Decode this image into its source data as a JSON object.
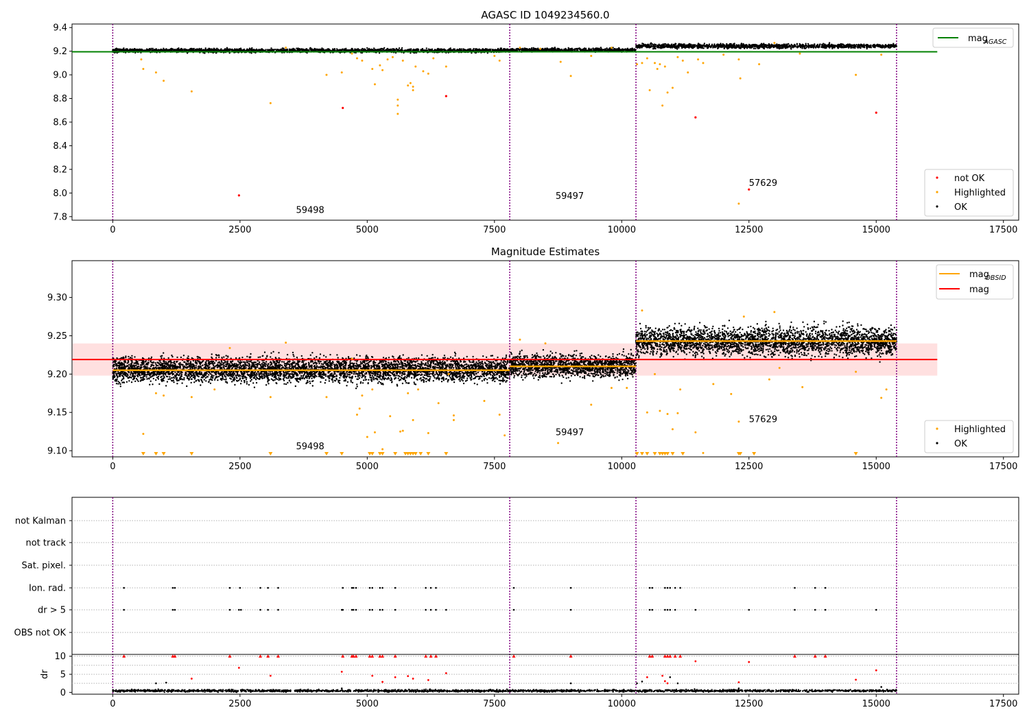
{
  "figure_title": "AGASC ID 1049234560.0",
  "colors": {
    "ok": "#000000",
    "highlighted": "#ffa500",
    "not_ok": "#ff0000",
    "agasc_line": "#008000",
    "mag_line": "#ff0000",
    "mag_obsid_line": "#ffa500",
    "boundary": "#800080",
    "band": "#ffdada"
  },
  "chart_data": [
    {
      "type": "scatter",
      "title": "AGASC ID 1049234560.0",
      "xlabel": "",
      "ylabel": "",
      "xlim": [
        -800,
        17800
      ],
      "ylim": [
        7.77,
        9.43
      ],
      "xticks": [
        0,
        2500,
        5000,
        7500,
        10000,
        12500,
        15000,
        17500
      ],
      "xtick_labels": [
        "0",
        "2500",
        "5000",
        "7500",
        "10000",
        "12500",
        "15000",
        "17500"
      ],
      "yticks": [
        7.8,
        8.0,
        8.2,
        8.4,
        8.6,
        8.8,
        9.0,
        9.2,
        9.4
      ],
      "ytick_labels": [
        "7.8",
        "8.0",
        "8.2",
        "8.4",
        "8.6",
        "8.8",
        "9.0",
        "9.2",
        "9.4"
      ],
      "legend_top": {
        "position": "top-right",
        "entries": [
          {
            "label": "mag",
            "subscript": "AGASC",
            "color": "#008000",
            "kind": "line"
          }
        ]
      },
      "legend_bottom": {
        "position": "bottom-right",
        "entries": [
          {
            "label": "not OK",
            "color": "#ff0000",
            "kind": "dot"
          },
          {
            "label": "Highlighted",
            "color": "#ffa500",
            "kind": "dot"
          },
          {
            "label": "OK",
            "color": "#000000",
            "kind": "dot"
          }
        ]
      },
      "obsid_boundaries": [
        0,
        7800,
        10280,
        15400
      ],
      "obsid_annotations": [
        {
          "label": "59498",
          "x": 3600,
          "y": 7.83
        },
        {
          "label": "59497",
          "x": 8700,
          "y": 7.95
        },
        {
          "label": "57629",
          "x": 12500,
          "y": 8.06
        }
      ],
      "agasc_mag": 9.195,
      "agasc_mag_xrange": [
        -800,
        16200
      ],
      "ok_bands": [
        {
          "x0": 0,
          "x1": 7800,
          "center": 9.205,
          "spread": 0.018
        },
        {
          "x0": 7800,
          "x1": 10280,
          "center": 9.21,
          "spread": 0.016
        },
        {
          "x0": 10280,
          "x1": 15400,
          "center": 9.243,
          "spread": 0.02
        }
      ],
      "highlighted_points": [
        [
          600,
          9.05
        ],
        [
          850,
          9.02
        ],
        [
          560,
          9.13
        ],
        [
          1000,
          8.95
        ],
        [
          1550,
          8.86
        ],
        [
          3100,
          8.76
        ],
        [
          3400,
          9.23
        ],
        [
          4200,
          9.0
        ],
        [
          4500,
          9.02
        ],
        [
          4800,
          9.14
        ],
        [
          4700,
          9.18
        ],
        [
          4900,
          9.12
        ],
        [
          5100,
          9.05
        ],
        [
          5150,
          8.92
        ],
        [
          5300,
          9.04
        ],
        [
          5250,
          9.08
        ],
        [
          5400,
          9.13
        ],
        [
          5500,
          9.15
        ],
        [
          5600,
          8.79
        ],
        [
          5600,
          8.74
        ],
        [
          5600,
          8.67
        ],
        [
          5700,
          9.12
        ],
        [
          5800,
          8.91
        ],
        [
          5850,
          8.93
        ],
        [
          5900,
          8.9
        ],
        [
          5900,
          8.87
        ],
        [
          5950,
          9.07
        ],
        [
          6100,
          9.03
        ],
        [
          6200,
          9.01
        ],
        [
          6300,
          9.14
        ],
        [
          6550,
          9.07
        ],
        [
          7500,
          9.16
        ],
        [
          7600,
          9.12
        ],
        [
          8000,
          9.23
        ],
        [
          8400,
          9.22
        ],
        [
          8800,
          9.11
        ],
        [
          9000,
          8.99
        ],
        [
          9400,
          9.16
        ],
        [
          9800,
          9.23
        ],
        [
          10300,
          9.09
        ],
        [
          10400,
          9.1
        ],
        [
          10500,
          9.14
        ],
        [
          10550,
          8.87
        ],
        [
          10650,
          9.1
        ],
        [
          10700,
          9.05
        ],
        [
          10750,
          9.09
        ],
        [
          10800,
          8.74
        ],
        [
          10850,
          9.07
        ],
        [
          10900,
          8.85
        ],
        [
          11000,
          8.89
        ],
        [
          11100,
          9.15
        ],
        [
          11200,
          9.12
        ],
        [
          11300,
          9.02
        ],
        [
          11500,
          9.13
        ],
        [
          11600,
          9.1
        ],
        [
          12000,
          9.17
        ],
        [
          12300,
          9.13
        ],
        [
          12330,
          8.97
        ],
        [
          12300,
          7.91
        ],
        [
          12700,
          9.09
        ],
        [
          13000,
          9.27
        ],
        [
          13500,
          9.18
        ],
        [
          14600,
          9.0
        ],
        [
          15100,
          9.17
        ]
      ],
      "not_ok_points": [
        [
          2480,
          7.98
        ],
        [
          4520,
          8.72
        ],
        [
          6550,
          8.82
        ],
        [
          11450,
          8.64
        ],
        [
          12500,
          8.03
        ],
        [
          15000,
          8.68
        ]
      ]
    },
    {
      "type": "scatter",
      "title": "Magnitude Estimates",
      "xlabel": "",
      "ylabel": "",
      "xlim": [
        -800,
        17800
      ],
      "ylim": [
        9.092,
        9.348
      ],
      "xticks": [
        0,
        2500,
        5000,
        7500,
        10000,
        12500,
        15000,
        17500
      ],
      "xtick_labels": [
        "0",
        "2500",
        "5000",
        "7500",
        "10000",
        "12500",
        "15000",
        "17500"
      ],
      "yticks": [
        9.1,
        9.15,
        9.2,
        9.25,
        9.3
      ],
      "ytick_labels": [
        "9.10",
        "9.15",
        "9.20",
        "9.25",
        "9.30"
      ],
      "legend_top": {
        "position": "top-right",
        "entries": [
          {
            "label": "mag",
            "subscript": "OBSID",
            "color": "#ffa500",
            "kind": "line"
          },
          {
            "label": "mag",
            "subscript": "",
            "color": "#ff0000",
            "kind": "line"
          }
        ]
      },
      "legend_bottom": {
        "position": "bottom-right",
        "entries": [
          {
            "label": "Highlighted",
            "color": "#ffa500",
            "kind": "dot"
          },
          {
            "label": "OK",
            "color": "#000000",
            "kind": "dot"
          }
        ]
      },
      "obsid_boundaries": [
        0,
        7800,
        10280,
        15400
      ],
      "obsid_annotations": [
        {
          "label": "59498",
          "x": 3600,
          "y": 9.102
        },
        {
          "label": "59497",
          "x": 8700,
          "y": 9.12
        },
        {
          "label": "57629",
          "x": 12500,
          "y": 9.137
        }
      ],
      "mag": 9.219,
      "mag_band": [
        9.198,
        9.24
      ],
      "mag_xrange": [
        -800,
        16200
      ],
      "mag_obsid": [
        {
          "x0": 0,
          "x1": 7800,
          "value": 9.205
        },
        {
          "x0": 7800,
          "x1": 10280,
          "value": 9.21
        },
        {
          "x0": 10280,
          "x1": 15400,
          "value": 9.243
        }
      ],
      "ok_bands": [
        {
          "x0": 0,
          "x1": 7800,
          "center": 9.206,
          "spread": 0.018
        },
        {
          "x0": 7800,
          "x1": 10280,
          "center": 9.211,
          "spread": 0.016
        },
        {
          "x0": 10280,
          "x1": 15400,
          "center": 9.243,
          "spread": 0.02
        }
      ],
      "highlighted_points": [
        [
          600,
          9.122
        ],
        [
          850,
          9.175
        ],
        [
          1000,
          9.172
        ],
        [
          1550,
          9.17
        ],
        [
          2000,
          9.18
        ],
        [
          2300,
          9.234
        ],
        [
          3100,
          9.17
        ],
        [
          3400,
          9.241
        ],
        [
          4200,
          9.17
        ],
        [
          4700,
          9.22
        ],
        [
          4800,
          9.147
        ],
        [
          4850,
          9.155
        ],
        [
          4900,
          9.172
        ],
        [
          5000,
          9.118
        ],
        [
          5100,
          9.18
        ],
        [
          5150,
          9.124
        ],
        [
          5300,
          9.102
        ],
        [
          5450,
          9.145
        ],
        [
          5650,
          9.125
        ],
        [
          5700,
          9.126
        ],
        [
          5800,
          9.175
        ],
        [
          5900,
          9.14
        ],
        [
          6000,
          9.18
        ],
        [
          6200,
          9.123
        ],
        [
          6400,
          9.162
        ],
        [
          6600,
          9.2
        ],
        [
          6700,
          9.14
        ],
        [
          6700,
          9.146
        ],
        [
          7300,
          9.165
        ],
        [
          7600,
          9.147
        ],
        [
          7700,
          9.12
        ],
        [
          8000,
          9.245
        ],
        [
          8500,
          9.24
        ],
        [
          8750,
          9.11
        ],
        [
          9400,
          9.16
        ],
        [
          9800,
          9.182
        ],
        [
          10100,
          9.182
        ],
        [
          10400,
          9.283
        ],
        [
          10500,
          9.15
        ],
        [
          10650,
          9.2
        ],
        [
          10750,
          9.152
        ],
        [
          10900,
          9.148
        ],
        [
          11000,
          9.128
        ],
        [
          11100,
          9.149
        ],
        [
          11150,
          9.18
        ],
        [
          11450,
          9.124
        ],
        [
          11600,
          9.097
        ],
        [
          11800,
          9.187
        ],
        [
          12150,
          9.174
        ],
        [
          12300,
          9.138
        ],
        [
          12400,
          9.275
        ],
        [
          12900,
          9.193
        ],
        [
          13000,
          9.281
        ],
        [
          13100,
          9.208
        ],
        [
          13550,
          9.183
        ],
        [
          14600,
          9.203
        ],
        [
          15100,
          9.169
        ],
        [
          15200,
          9.18
        ]
      ],
      "below_limit_x": [
        600,
        850,
        1000,
        1550,
        3100,
        4200,
        4500,
        5050,
        5100,
        5250,
        5300,
        5550,
        5750,
        5800,
        5850,
        5900,
        5950,
        6050,
        6200,
        6550,
        10300,
        10400,
        10500,
        10650,
        10750,
        10800,
        10850,
        10900,
        11000,
        11200,
        12300,
        12330,
        12600,
        14600
      ]
    },
    {
      "type": "scatter",
      "title": "",
      "xlabel": "",
      "ylabel": "",
      "xlim": [
        -800,
        17800
      ],
      "category_labels": [
        "not Kalman",
        "not track",
        "Sat. pixel.",
        "Ion. rad.",
        "dr > 5",
        "OBS not OK"
      ],
      "obsid_boundaries": [
        0,
        7800,
        10280,
        15400
      ],
      "flag_points": {
        "Ion. rad.": [
          220,
          1180,
          1220,
          2300,
          2500,
          2900,
          3050,
          3250,
          4520,
          4700,
          4730,
          4780,
          5050,
          5100,
          5250,
          5300,
          5550,
          6150,
          6250,
          6350,
          7880,
          9000,
          10550,
          10600,
          10850,
          10900,
          10950,
          11050,
          11150,
          13400,
          13800,
          14000
        ],
        "dr > 5": [
          220,
          1180,
          1220,
          2300,
          2480,
          2520,
          2900,
          3050,
          3250,
          4500,
          4520,
          4700,
          4730,
          4780,
          5050,
          5100,
          5250,
          5300,
          5550,
          6150,
          6250,
          6350,
          6550,
          7880,
          9000,
          10550,
          10600,
          10850,
          10900,
          10950,
          11050,
          11450,
          12500,
          13400,
          13800,
          14000,
          15000
        ]
      }
    },
    {
      "type": "scatter",
      "title": "",
      "xlabel": "",
      "ylabel": "dr",
      "xlim": [
        -800,
        17800
      ],
      "ylim": [
        -0.5,
        10.5
      ],
      "xticks": [
        0,
        2500,
        5000,
        7500,
        10000,
        12500,
        15000,
        17500
      ],
      "xtick_labels": [
        "0",
        "2500",
        "5000",
        "7500",
        "10000",
        "12500",
        "15000",
        "17500"
      ],
      "yticks": [
        0,
        5,
        10
      ],
      "ytick_labels": [
        "0",
        "5",
        "10"
      ],
      "obsid_boundaries": [
        0,
        7800,
        10280,
        15400
      ],
      "clipped_points_x": [
        220,
        1180,
        1220,
        2300,
        2900,
        3050,
        3250,
        4520,
        4700,
        4730,
        4780,
        5050,
        5100,
        5250,
        5300,
        5550,
        6150,
        6250,
        6350,
        7880,
        9000,
        10550,
        10600,
        10850,
        10900,
        10950,
        11050,
        11150,
        13400,
        13800,
        14000
      ],
      "red_points": [
        [
          2480,
          6.8
        ],
        [
          1550,
          3.8
        ],
        [
          3100,
          4.6
        ],
        [
          4500,
          5.7
        ],
        [
          5100,
          4.6
        ],
        [
          5300,
          2.9
        ],
        [
          5550,
          4.2
        ],
        [
          5800,
          4.5
        ],
        [
          5900,
          3.8
        ],
        [
          6200,
          3.4
        ],
        [
          6550,
          5.3
        ],
        [
          10500,
          4.2
        ],
        [
          10800,
          4.6
        ],
        [
          10850,
          3.1
        ],
        [
          10900,
          2.5
        ],
        [
          11450,
          8.6
        ],
        [
          12300,
          2.8
        ],
        [
          12500,
          8.4
        ],
        [
          14600,
          3.5
        ],
        [
          15000,
          6.1
        ]
      ],
      "black_points": [
        [
          850,
          2.5
        ],
        [
          1050,
          2.7
        ],
        [
          4500,
          1.1
        ],
        [
          9000,
          2.5
        ],
        [
          10300,
          2.5
        ],
        [
          10400,
          3.0
        ],
        [
          10950,
          4.2
        ],
        [
          11100,
          2.5
        ],
        [
          12300,
          1.1
        ],
        [
          15100,
          1.5
        ]
      ],
      "baseline_mean": 0.45,
      "baseline_spread": 0.35
    }
  ]
}
